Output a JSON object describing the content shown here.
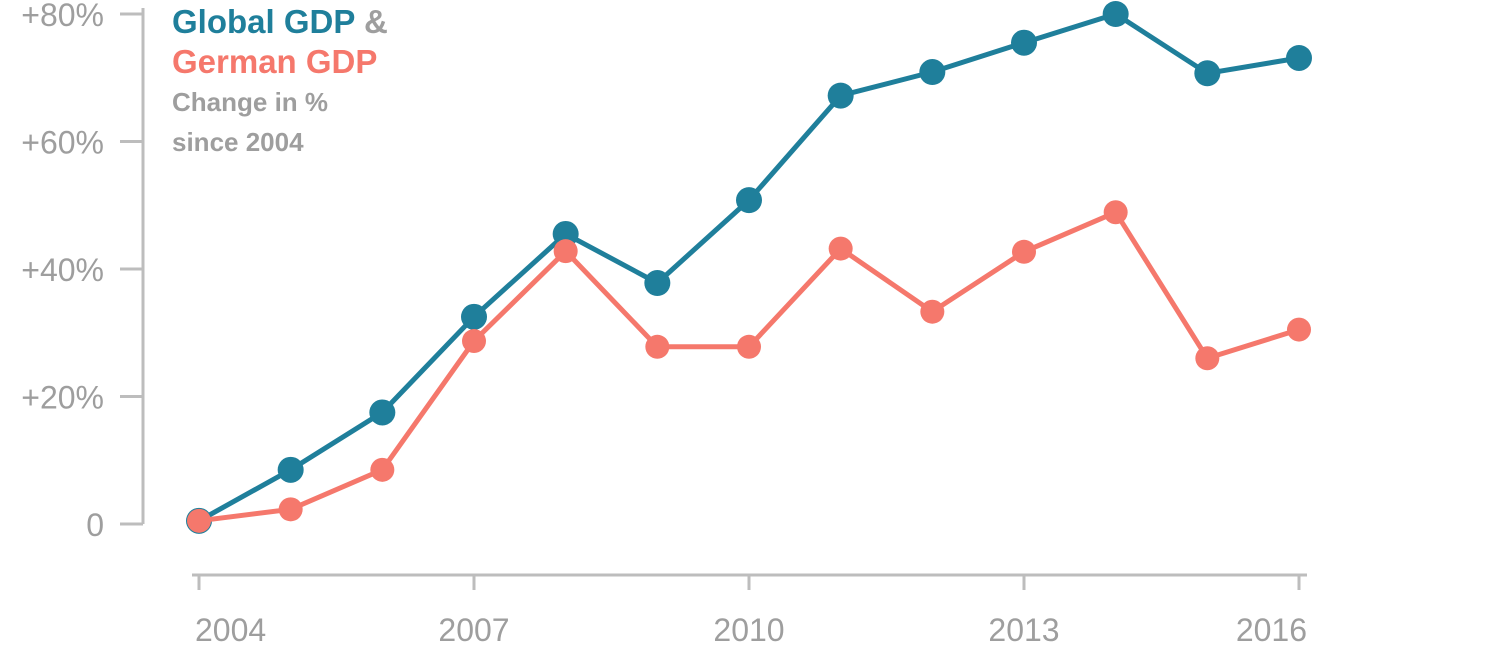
{
  "title": {
    "series1_name": "Global GDP",
    "connector": "&",
    "series2_name": "German GDP",
    "subtitle_line1": "Change in %",
    "subtitle_line2": "since 2004"
  },
  "colors": {
    "global": "#1f7f9b",
    "german": "#f5786c",
    "axis": "#bdbdbd",
    "text_muted": "#9e9e9e"
  },
  "chart_data": {
    "type": "line",
    "title": "Global GDP & German GDP",
    "subtitle": "Change in % since 2004",
    "x": [
      2004,
      2005,
      2006,
      2007,
      2008,
      2009,
      2010,
      2011,
      2012,
      2013,
      2014,
      2015,
      2016
    ],
    "xlim": [
      2004,
      2016
    ],
    "ylim": [
      0,
      80
    ],
    "x_ticks": [
      2004,
      2007,
      2010,
      2013,
      2016
    ],
    "x_tick_labels": [
      "2004",
      "2007",
      "2010",
      "2013",
      "2016"
    ],
    "y_ticks": [
      0,
      20,
      40,
      60,
      80
    ],
    "y_tick_labels": [
      "0",
      "+20%",
      "+40%",
      "+60%",
      "+80%"
    ],
    "grid": false,
    "legend": "none (series named in title)",
    "series": [
      {
        "name": "Global GDP",
        "color": "#1f7f9b",
        "values": [
          0.5,
          8.5,
          17.5,
          32.5,
          45.5,
          37.8,
          50.8,
          67.2,
          70.9,
          75.5,
          80.0,
          70.7,
          73.1
        ]
      },
      {
        "name": "German GDP",
        "color": "#f5786c",
        "values": [
          0.5,
          2.3,
          8.5,
          28.7,
          42.8,
          27.8,
          27.8,
          43.2,
          33.3,
          42.7,
          48.9,
          26.0,
          30.5
        ]
      }
    ]
  }
}
